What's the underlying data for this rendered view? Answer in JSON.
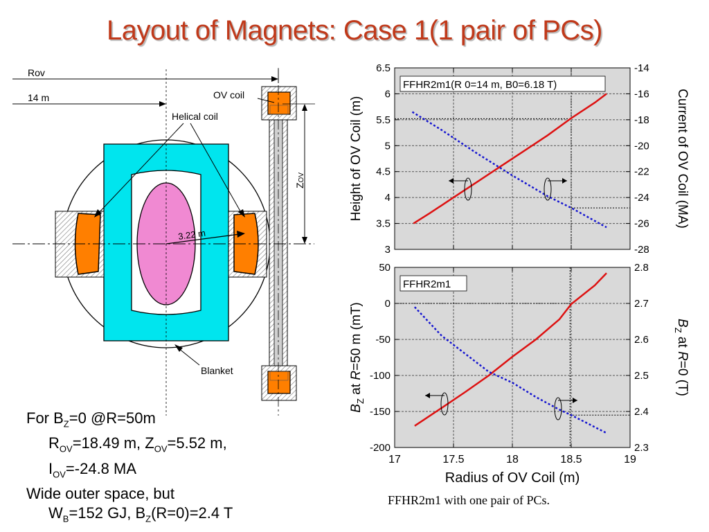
{
  "title": "Layout of Magnets: Case 1(1 pair of PCs)",
  "diagram": {
    "rov_label": "Rov",
    "r14_label": "14 m",
    "ov_coil_label": "OV coil",
    "helical_coil_label": "Helical coil",
    "zov_label": "Z",
    "zov_sub": "OV",
    "radius_label": "3.22 m",
    "blanket_label": "Blanket"
  },
  "notes": {
    "line1": {
      "pre": "For B",
      "sub": "Z",
      "post": "=0 @R=50m"
    },
    "line2": {
      "a": "R",
      "a_sub": "OV",
      "b": "=18.49 m, Z",
      "b_sub": "OV",
      "c": "=5.52 m,"
    },
    "line3": {
      "a": "I",
      "a_sub": "OV",
      "b": "=-24.8 MA"
    },
    "line4": "Wide outer space, but",
    "line5": {
      "a": "W",
      "a_sub": "B",
      "b": "=152 GJ, B",
      "b_sub": "Z",
      "c": "(R=0)=2.4 T"
    }
  },
  "caption": "FFHR2m1 with one pair of PCs.",
  "colors": {
    "title": "#c0391a",
    "blanket": "#00e5ee",
    "plasma": "#f089d2",
    "coil": "#ff7f00",
    "red_series": "#dd1111",
    "blue_series": "#1515d0",
    "plot_bg": "#d9d9d9"
  },
  "chart_data": [
    {
      "type": "line",
      "annotation": "FFHR2m1(R 0=14 m, B0=6.18 T)",
      "xlabel": "Radius of OV Coil (m)",
      "ylabel": "Height of OV Coil (m)",
      "y2label": "Current of OV Coil (MA)",
      "xlim": [
        17,
        19
      ],
      "ylim": [
        3,
        6.5
      ],
      "y2lim": [
        -28,
        -14
      ],
      "x_ticks": [
        "17",
        "17.5",
        "18",
        "18.5",
        "19"
      ],
      "y_ticks": [
        "3",
        "3.5",
        "4",
        "4.5",
        "5",
        "5.5",
        "6",
        "6.5"
      ],
      "y2_ticks": [
        "-28",
        "-26",
        "-24",
        "-22",
        "-20",
        "-18",
        "-16",
        "-14"
      ],
      "grid": true,
      "series": [
        {
          "axis": "left",
          "color": "red",
          "x": [
            17.16,
            17.3,
            17.5,
            17.7,
            17.9,
            18.1,
            18.3,
            18.5,
            18.7,
            18.8
          ],
          "y": [
            3.5,
            3.7,
            4.0,
            4.3,
            4.6,
            4.9,
            5.2,
            5.53,
            5.83,
            6.0
          ]
        },
        {
          "axis": "right",
          "color": "blue",
          "x": [
            17.15,
            17.4,
            17.7,
            18.0,
            18.3,
            18.5,
            18.8
          ],
          "y": [
            -17.4,
            -18.8,
            -20.6,
            -22.3,
            -23.9,
            -24.8,
            -26.3
          ]
        }
      ],
      "markers": {
        "x": 18.5,
        "y_left": 5.52,
        "y_right": -24.8
      }
    },
    {
      "type": "line",
      "annotation": "FFHR2m1",
      "xlabel": "Radius of OV Coil (m)",
      "ylabel_parts": [
        "B",
        "Z",
        " at ",
        "R",
        "=50 m (mT)"
      ],
      "y2label_parts": [
        "B",
        "Z",
        " at ",
        "R",
        "=0 (T)"
      ],
      "xlim": [
        17,
        19
      ],
      "ylim": [
        -200,
        50
      ],
      "y2lim": [
        2.3,
        2.8
      ],
      "x_ticks": [
        "17",
        "17.5",
        "18",
        "18.5",
        "19"
      ],
      "y_ticks": [
        "-200",
        "-150",
        "-100",
        "-50",
        "0",
        "50"
      ],
      "y2_ticks": [
        "2.3",
        "2.4",
        "2.5",
        "2.6",
        "2.7",
        "2.8"
      ],
      "grid": true,
      "series": [
        {
          "axis": "left",
          "color": "red",
          "x": [
            17.17,
            17.4,
            17.6,
            17.8,
            18.0,
            18.2,
            18.4,
            18.5,
            18.7,
            18.8
          ],
          "y": [
            -170,
            -145,
            -123,
            -100,
            -74,
            -50,
            -22,
            -1,
            25,
            42
          ]
        },
        {
          "axis": "right",
          "color": "blue",
          "x": [
            17.17,
            17.4,
            17.6,
            17.8,
            18.0,
            18.2,
            18.4,
            18.5,
            18.8
          ],
          "y": [
            2.69,
            2.61,
            2.56,
            2.51,
            2.48,
            2.44,
            2.405,
            2.39,
            2.34
          ]
        }
      ],
      "markers": {
        "x": 18.49,
        "y_left": 0,
        "y_right": 2.39
      }
    }
  ]
}
